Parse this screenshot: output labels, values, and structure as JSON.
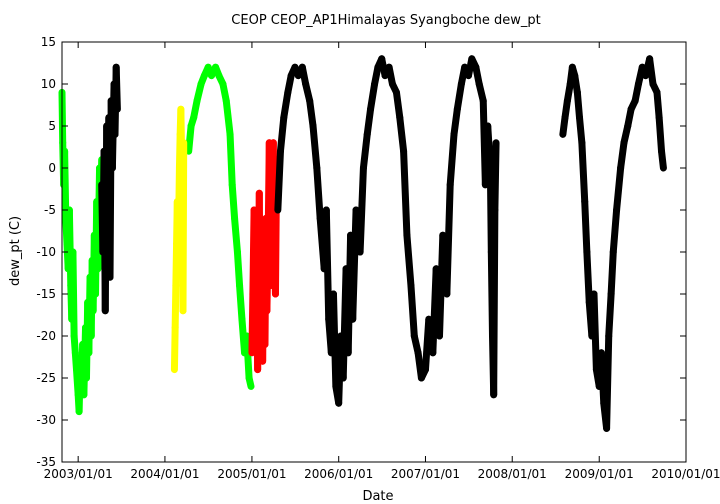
{
  "chart_data": {
    "type": "scatter",
    "title": "CEOP CEOP_AP1Himalayas Syangboche  dew_pt",
    "xlabel": "Date",
    "ylabel": "dew_pt (C)",
    "xlim": [
      "2002/10/25",
      "2010/01/01"
    ],
    "ylim": [
      -35,
      15
    ],
    "x_ticks": [
      "2003/01/01",
      "2004/01/01",
      "2005/01/01",
      "2006/01/01",
      "2007/01/01",
      "2008/01/01",
      "2009/01/01",
      "2010/01/01"
    ],
    "y_ticks": [
      15,
      10,
      5,
      0,
      -5,
      -10,
      -15,
      -20,
      -25,
      -30,
      -35
    ],
    "grid": false,
    "legend": "none",
    "series": [
      {
        "color": "#00ff00",
        "marker": "dot",
        "points": [
          [
            "2002/10/25",
            9
          ],
          [
            "2002/10/28",
            3
          ],
          [
            "2002/11/01",
            -2
          ],
          [
            "2002/11/05",
            2
          ],
          [
            "2002/11/10",
            -6
          ],
          [
            "2002/11/15",
            -9
          ],
          [
            "2002/11/20",
            -12
          ],
          [
            "2002/11/25",
            -5
          ],
          [
            "2002/12/01",
            -14
          ],
          [
            "2002/12/05",
            -18
          ],
          [
            "2002/12/10",
            -10
          ],
          [
            "2002/12/15",
            -20
          ],
          [
            "2002/12/20",
            -22
          ],
          [
            "2002/12/25",
            -24
          ],
          [
            "2003/01/01",
            -27
          ],
          [
            "2003/01/05",
            -29
          ],
          [
            "2003/01/10",
            -23
          ],
          [
            "2003/01/15",
            -26
          ],
          [
            "2003/01/20",
            -21
          ],
          [
            "2003/01/25",
            -27
          ],
          [
            "2003/02/01",
            -19
          ],
          [
            "2003/02/05",
            -25
          ],
          [
            "2003/02/10",
            -16
          ],
          [
            "2003/02/15",
            -22
          ],
          [
            "2003/02/20",
            -13
          ],
          [
            "2003/02/25",
            -20
          ],
          [
            "2003/03/01",
            -11
          ],
          [
            "2003/03/05",
            -17
          ],
          [
            "2003/03/10",
            -8
          ],
          [
            "2003/03/15",
            -15
          ],
          [
            "2003/03/20",
            -4
          ],
          [
            "2003/03/25",
            -12
          ],
          [
            "2003/04/01",
            0
          ],
          [
            "2003/04/05",
            -7
          ],
          [
            "2003/04/10",
            1
          ],
          [
            "2004/04/10",
            2
          ],
          [
            "2004/04/20",
            5
          ],
          [
            "2004/05/01",
            6
          ],
          [
            "2004/05/15",
            8
          ],
          [
            "2004/06/01",
            10
          ],
          [
            "2004/06/15",
            11
          ],
          [
            "2004/07/01",
            12
          ],
          [
            "2004/07/15",
            11
          ],
          [
            "2004/08/01",
            12
          ],
          [
            "2004/08/15",
            11
          ],
          [
            "2004/09/01",
            10
          ],
          [
            "2004/09/15",
            8
          ],
          [
            "2004/10/01",
            4
          ],
          [
            "2004/10/10",
            -2
          ],
          [
            "2004/10/20",
            -6
          ],
          [
            "2004/11/01",
            -10
          ],
          [
            "2004/11/10",
            -14
          ],
          [
            "2004/11/20",
            -18
          ],
          [
            "2004/12/01",
            -22
          ],
          [
            "2004/12/10",
            -20
          ],
          [
            "2004/12/20",
            -25
          ],
          [
            "2004/12/28",
            -26
          ]
        ]
      },
      {
        "color": "#ffff00",
        "marker": "dot",
        "points": [
          [
            "2004/02/10",
            -24
          ],
          [
            "2004/02/13",
            -19
          ],
          [
            "2004/02/16",
            -14
          ],
          [
            "2004/02/19",
            -9
          ],
          [
            "2004/02/22",
            -4
          ],
          [
            "2004/02/25",
            -11
          ],
          [
            "2004/02/28",
            -6
          ],
          [
            "2004/03/02",
            0
          ],
          [
            "2004/03/05",
            4
          ],
          [
            "2004/03/08",
            7
          ],
          [
            "2004/03/11",
            2
          ],
          [
            "2004/03/14",
            -3
          ],
          [
            "2004/03/17",
            -17
          ],
          [
            "2004/03/20",
            3
          ]
        ]
      },
      {
        "color": "#ff0000",
        "marker": "dot",
        "points": [
          [
            "2005/01/01",
            -22
          ],
          [
            "2005/01/05",
            -15
          ],
          [
            "2005/01/10",
            -5
          ],
          [
            "2005/01/15",
            -20
          ],
          [
            "2005/01/20",
            -10
          ],
          [
            "2005/01/25",
            -24
          ],
          [
            "2005/02/01",
            -3
          ],
          [
            "2005/02/05",
            -18
          ],
          [
            "2005/02/10",
            -8
          ],
          [
            "2005/02/15",
            -23
          ],
          [
            "2005/02/20",
            -12
          ],
          [
            "2005/02/25",
            -21
          ],
          [
            "2005/03/01",
            -6
          ],
          [
            "2005/03/05",
            -17
          ],
          [
            "2005/03/10",
            -9
          ],
          [
            "2005/03/15",
            3
          ],
          [
            "2005/03/20",
            -14
          ],
          [
            "2005/03/25",
            -2
          ],
          [
            "2005/04/01",
            3
          ],
          [
            "2005/04/05",
            -10
          ],
          [
            "2005/04/10",
            -15
          ],
          [
            "2005/04/15",
            1
          ]
        ]
      },
      {
        "color": "#000000",
        "marker": "dot",
        "points": [
          [
            "2003/04/10",
            -2
          ],
          [
            "2003/04/15",
            -10
          ],
          [
            "2003/04/20",
            2
          ],
          [
            "2003/04/25",
            -17
          ],
          [
            "2003/05/01",
            5
          ],
          [
            "2003/05/05",
            -5
          ],
          [
            "2003/05/10",
            6
          ],
          [
            "2003/05/15",
            -13
          ],
          [
            "2003/05/20",
            8
          ],
          [
            "2003/05/25",
            0
          ],
          [
            "2003/06/01",
            10
          ],
          [
            "2003/06/05",
            4
          ],
          [
            "2003/06/10",
            12
          ],
          [
            "2003/06/15",
            7
          ],
          [
            "2005/04/20",
            -5
          ],
          [
            "2005/05/01",
            2
          ],
          [
            "2005/05/15",
            6
          ],
          [
            "2005/06/01",
            9
          ],
          [
            "2005/06/15",
            11
          ],
          [
            "2005/07/01",
            12
          ],
          [
            "2005/07/15",
            11
          ],
          [
            "2005/08/01",
            12
          ],
          [
            "2005/08/15",
            10
          ],
          [
            "2005/09/01",
            8
          ],
          [
            "2005/09/15",
            5
          ],
          [
            "2005/10/01",
            0
          ],
          [
            "2005/10/15",
            -6
          ],
          [
            "2005/11/01",
            -12
          ],
          [
            "2005/11/10",
            -5
          ],
          [
            "2005/11/20",
            -18
          ],
          [
            "2005/12/01",
            -22
          ],
          [
            "2005/12/10",
            -15
          ],
          [
            "2005/12/20",
            -26
          ],
          [
            "2006/01/01",
            -28
          ],
          [
            "2006/01/10",
            -20
          ],
          [
            "2006/01/20",
            -25
          ],
          [
            "2006/02/01",
            -12
          ],
          [
            "2006/02/10",
            -22
          ],
          [
            "2006/02/20",
            -8
          ],
          [
            "2006/03/01",
            -18
          ],
          [
            "2006/03/15",
            -5
          ],
          [
            "2006/04/01",
            -10
          ],
          [
            "2006/04/15",
            0
          ],
          [
            "2006/05/01",
            4
          ],
          [
            "2006/05/15",
            7
          ],
          [
            "2006/06/01",
            10
          ],
          [
            "2006/06/15",
            12
          ],
          [
            "2006/07/01",
            13
          ],
          [
            "2006/07/15",
            11
          ],
          [
            "2006/08/01",
            12
          ],
          [
            "2006/08/15",
            10
          ],
          [
            "2006/09/01",
            9
          ],
          [
            "2006/09/15",
            6
          ],
          [
            "2006/10/01",
            2
          ],
          [
            "2006/10/15",
            -8
          ],
          [
            "2006/11/01",
            -14
          ],
          [
            "2006/11/15",
            -20
          ],
          [
            "2006/12/01",
            -22
          ],
          [
            "2006/12/15",
            -25
          ],
          [
            "2007/01/01",
            -24
          ],
          [
            "2007/01/15",
            -18
          ],
          [
            "2007/02/01",
            -22
          ],
          [
            "2007/02/15",
            -12
          ],
          [
            "2007/03/01",
            -20
          ],
          [
            "2007/03/15",
            -8
          ],
          [
            "2007/04/01",
            -15
          ],
          [
            "2007/04/15",
            -2
          ],
          [
            "2007/05/01",
            4
          ],
          [
            "2007/05/15",
            7
          ],
          [
            "2007/06/01",
            10
          ],
          [
            "2007/06/15",
            12
          ],
          [
            "2007/07/01",
            11
          ],
          [
            "2007/07/15",
            13
          ],
          [
            "2007/08/01",
            12
          ],
          [
            "2007/08/15",
            10
          ],
          [
            "2007/09/01",
            8
          ],
          [
            "2007/09/10",
            -2
          ],
          [
            "2007/09/20",
            5
          ],
          [
            "2007/10/01",
            0
          ],
          [
            "2007/10/05",
            -10
          ],
          [
            "2007/10/10",
            -20
          ],
          [
            "2007/10/15",
            -27
          ],
          [
            "2007/10/20",
            -5
          ],
          [
            "2007/10/25",
            3
          ],
          [
            "2008/08/01",
            4
          ],
          [
            "2008/08/10",
            6
          ],
          [
            "2008/08/20",
            8
          ],
          [
            "2008/09/01",
            10
          ],
          [
            "2008/09/10",
            12
          ],
          [
            "2008/09/20",
            11
          ],
          [
            "2008/10/01",
            9
          ],
          [
            "2008/10/10",
            6
          ],
          [
            "2008/10/20",
            3
          ],
          [
            "2008/11/01",
            -4
          ],
          [
            "2008/11/10",
            -10
          ],
          [
            "2008/11/20",
            -16
          ],
          [
            "2008/12/01",
            -20
          ],
          [
            "2008/12/10",
            -15
          ],
          [
            "2008/12/20",
            -24
          ],
          [
            "2009/01/01",
            -26
          ],
          [
            "2009/01/10",
            -22
          ],
          [
            "2009/01/20",
            -28
          ],
          [
            "2009/02/01",
            -31
          ],
          [
            "2009/02/10",
            -20
          ],
          [
            "2009/02/20",
            -15
          ],
          [
            "2009/03/01",
            -10
          ],
          [
            "2009/03/15",
            -5
          ],
          [
            "2009/04/01",
            0
          ],
          [
            "2009/04/15",
            3
          ],
          [
            "2009/05/01",
            5
          ],
          [
            "2009/05/15",
            7
          ],
          [
            "2009/06/01",
            8
          ],
          [
            "2009/06/15",
            10
          ],
          [
            "2009/07/01",
            12
          ],
          [
            "2009/07/15",
            11
          ],
          [
            "2009/08/01",
            13
          ],
          [
            "2009/08/15",
            10
          ],
          [
            "2009/09/01",
            9
          ],
          [
            "2009/09/10",
            6
          ],
          [
            "2009/09/20",
            2
          ],
          [
            "2009/09/28",
            0
          ]
        ]
      }
    ]
  }
}
